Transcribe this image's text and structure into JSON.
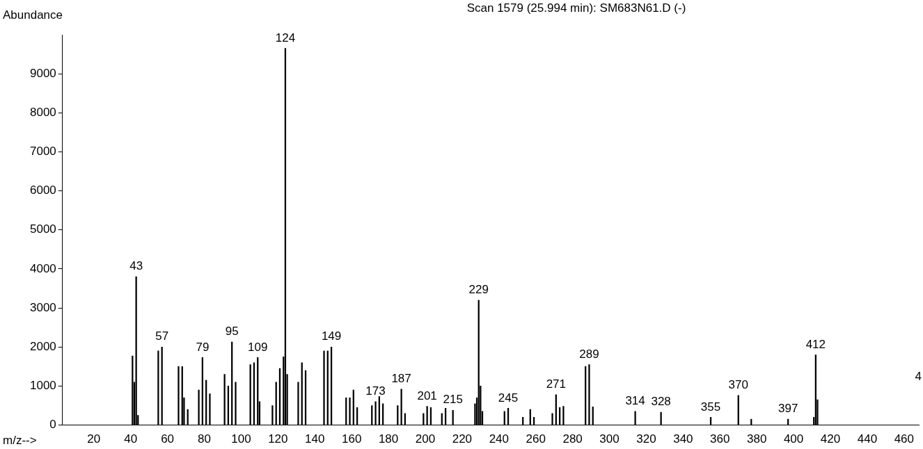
{
  "chart_data": {
    "type": "bar",
    "title": "Scan 1579 (25.994 min): SM683N61.D (-)",
    "xlabel": "m/z-->",
    "ylabel": "Abundance",
    "x": [
      41,
      42,
      43,
      44,
      55,
      57,
      66,
      68,
      69,
      71,
      77,
      79,
      81,
      83,
      91,
      93,
      95,
      97,
      105,
      107,
      109,
      110,
      117,
      119,
      121,
      123,
      124,
      125,
      131,
      133,
      135,
      145,
      147,
      149,
      157,
      159,
      161,
      163,
      171,
      173,
      175,
      177,
      185,
      187,
      189,
      199,
      201,
      203,
      209,
      211,
      215,
      227,
      228,
      229,
      230,
      231,
      243,
      245,
      253,
      257,
      259,
      269,
      271,
      273,
      275,
      287,
      289,
      291,
      314,
      328,
      355,
      370,
      377,
      397,
      411,
      412,
      413
    ],
    "series": [
      {
        "color": "#000000",
        "values": [
          1770,
          1100,
          3800,
          250,
          1900,
          2000,
          1500,
          1500,
          700,
          400,
          900,
          1730,
          1150,
          800,
          1300,
          1000,
          2130,
          1100,
          1550,
          1600,
          1730,
          600,
          500,
          1100,
          1450,
          1750,
          9650,
          1300,
          1100,
          1600,
          1400,
          1900,
          1900,
          2000,
          700,
          700,
          900,
          450,
          500,
          600,
          730,
          550,
          500,
          920,
          300,
          300,
          480,
          450,
          300,
          430,
          380,
          550,
          700,
          3200,
          1000,
          350,
          350,
          430,
          200,
          400,
          200,
          300,
          780,
          450,
          480,
          1500,
          1550,
          470,
          350,
          330,
          200,
          760,
          150,
          150,
          200,
          1800,
          650
        ],
        "name": null
      }
    ],
    "annotations": [
      {
        "text": "43",
        "x": 43,
        "y": 3800
      },
      {
        "text": "57",
        "x": 57,
        "y": 2000
      },
      {
        "text": "79",
        "x": 79,
        "y": 1730
      },
      {
        "text": "95",
        "x": 95,
        "y": 2130
      },
      {
        "text": "109",
        "x": 109,
        "y": 1730
      },
      {
        "text": "124",
        "x": 124,
        "y": 9650
      },
      {
        "text": "149",
        "x": 149,
        "y": 2000
      },
      {
        "text": "173",
        "x": 173,
        "y": 600
      },
      {
        "text": "187",
        "x": 187,
        "y": 920
      },
      {
        "text": "201",
        "x": 201,
        "y": 480
      },
      {
        "text": "215",
        "x": 215,
        "y": 380
      },
      {
        "text": "229",
        "x": 229,
        "y": 3200
      },
      {
        "text": "245",
        "x": 245,
        "y": 430
      },
      {
        "text": "271",
        "x": 271,
        "y": 780
      },
      {
        "text": "289",
        "x": 289,
        "y": 1550
      },
      {
        "text": "314",
        "x": 314,
        "y": 350
      },
      {
        "text": "328",
        "x": 328,
        "y": 330
      },
      {
        "text": "355",
        "x": 355,
        "y": 200
      },
      {
        "text": "370",
        "x": 370,
        "y": 760
      },
      {
        "text": "397",
        "x": 397,
        "y": 150
      },
      {
        "text": "412",
        "x": 412,
        "y": 1800
      },
      "4"
    ],
    "xlim": [
      3,
      468
    ],
    "xticks": [
      20,
      40,
      60,
      80,
      100,
      120,
      140,
      160,
      180,
      200,
      220,
      240,
      260,
      280,
      300,
      320,
      340,
      360,
      380,
      400,
      420,
      440,
      460
    ],
    "ylim": [
      0,
      10000
    ],
    "yticks": [
      0,
      1000,
      2000,
      3000,
      4000,
      5000,
      6000,
      7000,
      8000,
      9000
    ],
    "grid": false,
    "legend": false
  }
}
